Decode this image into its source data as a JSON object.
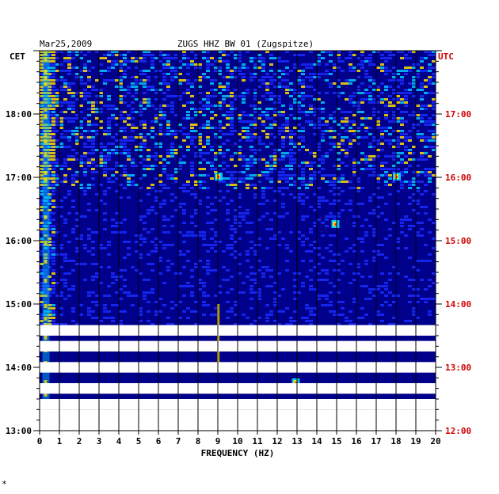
{
  "header": {
    "date": "Mar25,2009",
    "station": "ZUGS HHZ BW 01 (Zugspitze)",
    "left_tz": "CET",
    "right_tz": "UTC",
    "footer_mark": "*"
  },
  "colors": {
    "background_fill": "#00008b",
    "signal_mid": "#1a2cff",
    "signal_high": "#00c8ff",
    "signal_peak": "#ffe000",
    "signal_max": "#ff3000",
    "gap": "#ffffff",
    "utc_label": "#d00000",
    "grid": "#000000"
  },
  "chart_data": {
    "type": "heatmap",
    "title": "ZUGS HHZ BW 01 (Zugspitze)",
    "date": "Mar25,2009",
    "xlabel": "FREQUENCY (HZ)",
    "xlim": [
      0,
      20
    ],
    "x_ticks": [
      "0",
      "1",
      "2",
      "3",
      "4",
      "5",
      "6",
      "7",
      "8",
      "9",
      "10",
      "11",
      "12",
      "13",
      "14",
      "15",
      "16",
      "17",
      "18",
      "19",
      "20"
    ],
    "y_left_label": "CET",
    "y_left_ticks": [
      "18:00",
      "17:00",
      "16:00",
      "15:00",
      "14:00",
      "13:00"
    ],
    "y_right_label": "UTC",
    "y_right_ticks": [
      "17:00",
      "16:00",
      "15:00",
      "14:00",
      "13:00",
      "12:00"
    ],
    "time_range_cet": [
      "13:00",
      "18:50"
    ],
    "data_gaps_cet": [
      [
        "13:20",
        "13:30"
      ],
      [
        "13:35",
        "13:45"
      ],
      [
        "13:55",
        "14:05"
      ],
      [
        "14:15",
        "14:25"
      ],
      [
        "14:30",
        "14:40"
      ]
    ],
    "notable_features": [
      {
        "freq_hz": 0.3,
        "note": "persistent low-frequency energy"
      },
      {
        "freq_hz": 9.0,
        "time_cet": "14:00-15:00",
        "note": "narrow line"
      },
      {
        "freq_hz": 9.0,
        "time_cet": "17:00",
        "note": "burst"
      },
      {
        "freq_hz": 12.9,
        "time_cet": "13:45",
        "note": "burst"
      },
      {
        "freq_hz": 18.0,
        "time_cet": "17:00",
        "note": "burst"
      },
      {
        "freq_hz": 14.9,
        "time_cet": "16:15",
        "note": "burst"
      }
    ]
  }
}
